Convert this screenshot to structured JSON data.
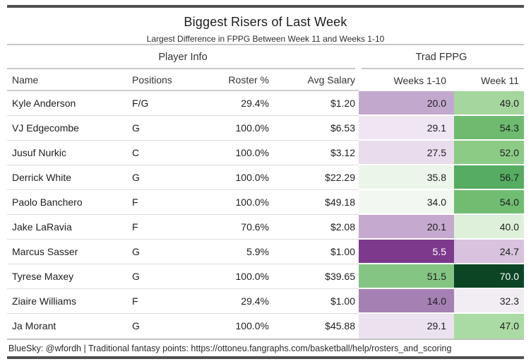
{
  "page": {
    "title": "Biggest Risers of Last Week",
    "subtitle": "Largest Difference in FPPG Between Week 11 and Weeks 1-10",
    "footer": "BlueSky: @wfordh | Traditional fantasy points: https://ottoneu.fangraphs.com/basketball/help/rosters_and_scoring"
  },
  "colors": {
    "accent_bar": "#515151",
    "divider": "#c6c6c6",
    "row_line": "#dcdcdc",
    "heat_dark_purple": "#7d3a8d",
    "heat_dark_green": "#0b4524"
  },
  "chart_data": {
    "type": "table",
    "title": "Biggest Risers of Last Week",
    "subtitle": "Largest Difference in FPPG Between Week 11 and Weeks 1-10",
    "column_groups": [
      {
        "label": "Player Info",
        "span": 4
      },
      {
        "label": "Trad FPPG",
        "span": 2
      }
    ],
    "columns": [
      "Name",
      "Positions",
      "Roster %",
      "Avg Salary",
      "Weeks 1-10",
      "Week 11"
    ],
    "rows": [
      {
        "name": "Kyle Anderson",
        "positions": "F/G",
        "roster_pct": "29.4%",
        "avg_salary": "$1.20",
        "weeks_1_10": "20.0",
        "week_11": "49.0",
        "weeks_1_10_bg": "#c3a8ce",
        "weeks_1_10_fg": "#1e1e1e",
        "week_11_bg": "#a5d69d",
        "week_11_fg": "#1e1e1e"
      },
      {
        "name": "VJ Edgecombe",
        "positions": "G",
        "roster_pct": "100.0%",
        "avg_salary": "$6.53",
        "weeks_1_10": "29.1",
        "week_11": "54.3",
        "weeks_1_10_bg": "#f0e5f2",
        "weeks_1_10_fg": "#1e1e1e",
        "week_11_bg": "#6ebb70",
        "week_11_fg": "#1e1e1e"
      },
      {
        "name": "Jusuf Nurkic",
        "positions": "C",
        "roster_pct": "100.0%",
        "avg_salary": "$3.12",
        "weeks_1_10": "27.5",
        "week_11": "52.0",
        "weeks_1_10_bg": "#e9dcec",
        "weeks_1_10_fg": "#1e1e1e",
        "week_11_bg": "#8bcb86",
        "week_11_fg": "#1e1e1e"
      },
      {
        "name": "Derrick White",
        "positions": "G",
        "roster_pct": "100.0%",
        "avg_salary": "$22.29",
        "weeks_1_10": "35.8",
        "week_11": "56.7",
        "weeks_1_10_bg": "#ebf5e9",
        "weeks_1_10_fg": "#1e1e1e",
        "week_11_bg": "#56ac61",
        "week_11_fg": "#1e1e1e"
      },
      {
        "name": "Paolo Banchero",
        "positions": "F",
        "roster_pct": "100.0%",
        "avg_salary": "$49.18",
        "weeks_1_10": "34.0",
        "week_11": "54.0",
        "weeks_1_10_bg": "#f2f8f1",
        "weeks_1_10_fg": "#1e1e1e",
        "week_11_bg": "#70bd72",
        "week_11_fg": "#1e1e1e"
      },
      {
        "name": "Jake LaRavia",
        "positions": "F",
        "roster_pct": "70.6%",
        "avg_salary": "$2.08",
        "weeks_1_10": "20.1",
        "week_11": "40.0",
        "weeks_1_10_bg": "#c5a9ce",
        "weeks_1_10_fg": "#1e1e1e",
        "week_11_bg": "#def0d9",
        "week_11_fg": "#1e1e1e"
      },
      {
        "name": "Marcus Sasser",
        "positions": "G",
        "roster_pct": "5.9%",
        "avg_salary": "$1.00",
        "weeks_1_10": "5.5",
        "week_11": "24.7",
        "weeks_1_10_bg": "#7d3a8d",
        "weeks_1_10_fg": "#ffffff",
        "week_11_bg": "#d8c2dd",
        "week_11_fg": "#1e1e1e"
      },
      {
        "name": "Tyrese Maxey",
        "positions": "G",
        "roster_pct": "100.0%",
        "avg_salary": "$39.65",
        "weeks_1_10": "51.5",
        "week_11": "70.0",
        "weeks_1_10_bg": "#85c584",
        "weeks_1_10_fg": "#1e1e1e",
        "week_11_bg": "#0b4524",
        "week_11_fg": "#ffffff"
      },
      {
        "name": "Ziaire Williams",
        "positions": "F",
        "roster_pct": "29.4%",
        "avg_salary": "$1.00",
        "weeks_1_10": "14.0",
        "week_11": "32.3",
        "weeks_1_10_bg": "#a480b3",
        "weeks_1_10_fg": "#1e1e1e",
        "week_11_bg": "#f2edf3",
        "week_11_fg": "#1e1e1e"
      },
      {
        "name": "Ja Morant",
        "positions": "G",
        "roster_pct": "100.0%",
        "avg_salary": "$45.88",
        "weeks_1_10": "29.1",
        "week_11": "47.0",
        "weeks_1_10_bg": "#ece1ef",
        "weeks_1_10_fg": "#1e1e1e",
        "week_11_bg": "#abdba4",
        "week_11_fg": "#1e1e1e"
      }
    ]
  }
}
